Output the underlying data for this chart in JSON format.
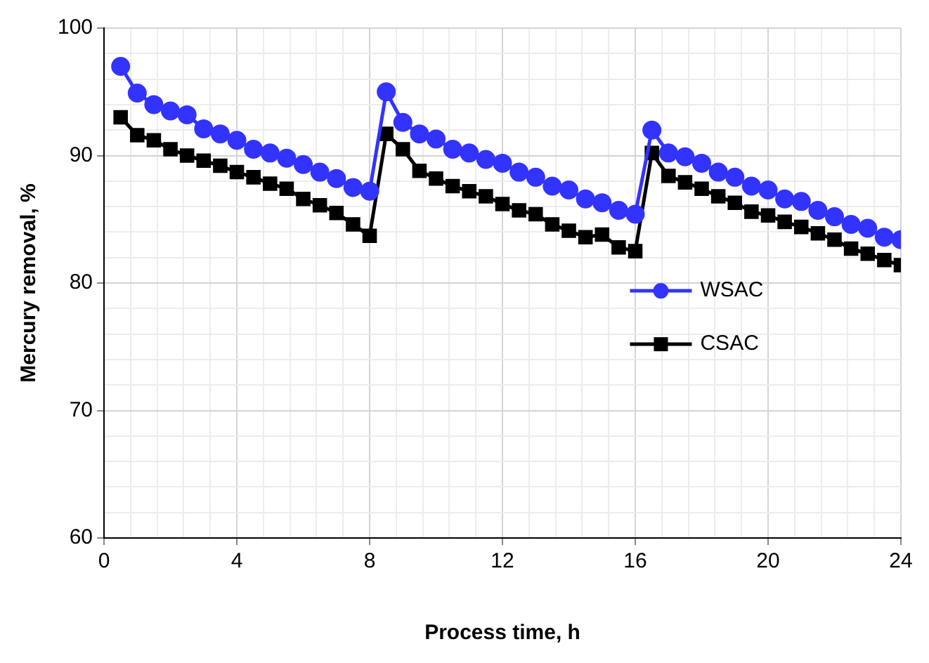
{
  "chart_data": {
    "type": "line",
    "xlabel": "Process time, h",
    "ylabel": "Mercury removal, %",
    "x": [
      0.5,
      1,
      1.5,
      2,
      2.5,
      3,
      3.5,
      4,
      4.5,
      5,
      5.5,
      6,
      6.5,
      7,
      7.5,
      8,
      8.5,
      9,
      9.5,
      10,
      10.5,
      11,
      11.5,
      12,
      12.5,
      13,
      13.5,
      14,
      14.5,
      15,
      15.5,
      16,
      16.5,
      17,
      17.5,
      18,
      18.5,
      19,
      19.5,
      20,
      20.5,
      21,
      21.5,
      22,
      22.5,
      23,
      23.5,
      24
    ],
    "series": [
      {
        "name": "WSAC",
        "color": "#3333ff",
        "marker": "circle",
        "values": [
          97,
          94.9,
          94,
          93.5,
          93.2,
          92.1,
          91.7,
          91.2,
          90.5,
          90.2,
          89.8,
          89.3,
          88.7,
          88.2,
          87.5,
          87.2,
          95,
          92.6,
          91.7,
          91.3,
          90.5,
          90.2,
          89.7,
          89.4,
          88.7,
          88.3,
          87.6,
          87.3,
          86.6,
          86.3,
          85.7,
          85.4,
          92,
          90.2,
          89.9,
          89.4,
          88.7,
          88.3,
          87.6,
          87.3,
          86.6,
          86.4,
          85.7,
          85.2,
          84.6,
          84.3,
          83.6,
          83.4
        ]
      },
      {
        "name": "CSAC",
        "color": "#000000",
        "marker": "square",
        "values": [
          93,
          91.6,
          91.2,
          90.5,
          90,
          89.6,
          89.2,
          88.7,
          88.3,
          87.8,
          87.4,
          86.6,
          86.1,
          85.5,
          84.6,
          83.7,
          91.7,
          90.5,
          88.8,
          88.2,
          87.6,
          87.2,
          86.8,
          86.2,
          85.7,
          85.4,
          84.6,
          84.1,
          83.6,
          83.8,
          82.8,
          82.5,
          90.2,
          88.4,
          87.9,
          87.4,
          86.8,
          86.3,
          85.6,
          85.3,
          84.8,
          84.4,
          83.9,
          83.4,
          82.7,
          82.3,
          81.8,
          81.4
        ]
      }
    ],
    "xlim": [
      0,
      24
    ],
    "xticks": [
      0,
      {
        "value": 0.8,
        "label": null
      },
      {
        "value": 1.6,
        "label": null
      },
      {
        "value": 2.4,
        "label": null
      },
      {
        "value": 3.2,
        "label": null
      },
      4,
      {
        "value": 4.8,
        "label": null
      },
      {
        "value": 5.6,
        "label": null
      },
      {
        "value": 6.4,
        "label": null
      },
      {
        "value": 7.2,
        "label": null
      },
      8,
      {
        "value": 8.8,
        "label": null
      },
      {
        "value": 9.6,
        "label": null
      },
      {
        "value": 10.4,
        "label": null
      },
      {
        "value": 11.2,
        "label": null
      },
      12,
      {
        "value": 12.8,
        "label": null
      },
      {
        "value": 13.6,
        "label": null
      },
      {
        "value": 14.4,
        "label": null
      },
      {
        "value": 15.2,
        "label": null
      },
      16,
      {
        "value": 16.8,
        "label": null
      },
      {
        "value": 17.6,
        "label": null
      },
      {
        "value": 18.4,
        "label": null
      },
      {
        "value": 19.2,
        "label": null
      },
      20,
      {
        "value": 20.8,
        "label": null
      },
      {
        "value": 21.6,
        "label": null
      },
      {
        "value": 22.4,
        "label": null
      },
      {
        "value": 23.2,
        "label": null
      },
      24
    ],
    "ylim": [
      60,
      100
    ],
    "yticks": [
      60,
      {
        "value": 62,
        "label": null
      },
      {
        "value": 64,
        "label": null
      },
      {
        "value": 66,
        "label": null
      },
      {
        "value": 68,
        "label": null
      },
      70,
      {
        "value": 72,
        "label": null
      },
      {
        "value": 74,
        "label": null
      },
      {
        "value": 76,
        "label": null
      },
      {
        "value": 78,
        "label": null
      },
      80,
      {
        "value": 82,
        "label": null
      },
      {
        "value": 84,
        "label": null
      },
      {
        "value": 86,
        "label": null
      },
      {
        "value": 88,
        "label": null
      },
      90,
      {
        "value": 92,
        "label": null
      },
      {
        "value": 94,
        "label": null
      },
      {
        "value": 96,
        "label": null
      },
      {
        "value": 98,
        "label": null
      },
      100
    ],
    "grid": true,
    "legend": "right",
    "line_style": "solid"
  }
}
